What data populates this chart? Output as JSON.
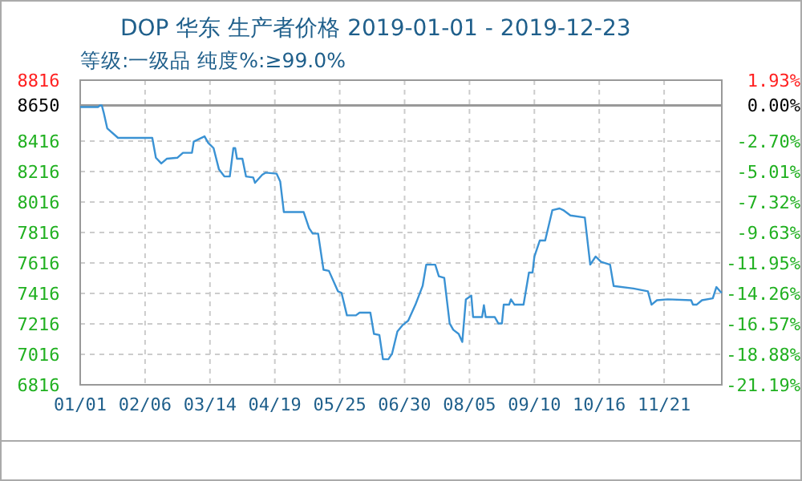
{
  "chart_data": {
    "type": "line",
    "title": "DOP 华东 生产者价格 2019-01-01 - 2019-12-23",
    "subtitle": "等级:一级品 纯度%:≥99.0%",
    "x": [
      "2019-01-01",
      "2019-01-11",
      "2019-01-12",
      "2019-01-13",
      "2019-01-14",
      "2019-01-16",
      "2019-01-22",
      "2019-02-10",
      "2019-02-12",
      "2019-02-15",
      "2019-02-18",
      "2019-02-24",
      "2019-02-27",
      "2019-03-04",
      "2019-03-05",
      "2019-03-11",
      "2019-03-13",
      "2019-03-16",
      "2019-03-19",
      "2019-03-22",
      "2019-03-25",
      "2019-03-27",
      "2019-03-28",
      "2019-03-29",
      "2019-04-01",
      "2019-04-03",
      "2019-04-07",
      "2019-04-08",
      "2019-04-12",
      "2019-04-14",
      "2019-04-20",
      "2019-04-22",
      "2019-04-24",
      "2019-05-05",
      "2019-05-08",
      "2019-05-10",
      "2019-05-13",
      "2019-05-16",
      "2019-05-19",
      "2019-05-24",
      "2019-05-26",
      "2019-05-29",
      "2019-06-03",
      "2019-06-05",
      "2019-06-11",
      "2019-06-13",
      "2019-06-16",
      "2019-06-18",
      "2019-06-21",
      "2019-06-23",
      "2019-06-26",
      "2019-06-29",
      "2019-07-02",
      "2019-07-06",
      "2019-07-10",
      "2019-07-12",
      "2019-07-17",
      "2019-07-19",
      "2019-07-22",
      "2019-07-25",
      "2019-07-27",
      "2019-07-30",
      "2019-08-01",
      "2019-08-03",
      "2019-08-06",
      "2019-08-07",
      "2019-08-12",
      "2019-08-13",
      "2019-08-14",
      "2019-08-19",
      "2019-08-21",
      "2019-08-23",
      "2019-08-24",
      "2019-08-27",
      "2019-08-28",
      "2019-08-30",
      "2019-09-04",
      "2019-09-07",
      "2019-09-09",
      "2019-09-10",
      "2019-09-13",
      "2019-09-16",
      "2019-09-20",
      "2019-09-24",
      "2019-09-26",
      "2019-09-30",
      "2019-10-08",
      "2019-10-11",
      "2019-10-14",
      "2019-10-17",
      "2019-10-22",
      "2019-10-24",
      "2019-11-04",
      "2019-11-12",
      "2019-11-14",
      "2019-11-17",
      "2019-11-23",
      "2019-12-06",
      "2019-12-07",
      "2019-12-09",
      "2019-12-12",
      "2019-12-18",
      "2019-12-20",
      "2019-12-22",
      "2019-12-23"
    ],
    "series": [
      {
        "color": "#3a92d4",
        "values": [
          8640,
          8640,
          8650,
          8650,
          8605,
          8500,
          8437,
          8437,
          8307,
          8269,
          8300,
          8307,
          8339,
          8339,
          8413,
          8447,
          8405,
          8370,
          8230,
          8184,
          8184,
          8370,
          8370,
          8300,
          8300,
          8184,
          8177,
          8142,
          8195,
          8209,
          8202,
          8150,
          7950,
          7950,
          7844,
          7809,
          7809,
          7571,
          7564,
          7430,
          7420,
          7272,
          7272,
          7290,
          7290,
          7150,
          7143,
          6984,
          6984,
          7019,
          7166,
          7209,
          7237,
          7342,
          7465,
          7605,
          7605,
          7529,
          7518,
          7219,
          7177,
          7150,
          7097,
          7377,
          7402,
          7261,
          7261,
          7339,
          7261,
          7261,
          7219,
          7219,
          7342,
          7342,
          7377,
          7342,
          7342,
          7553,
          7553,
          7658,
          7763,
          7763,
          7963,
          7974,
          7963,
          7928,
          7914,
          7605,
          7658,
          7623,
          7605,
          7465,
          7448,
          7430,
          7342,
          7371,
          7377,
          7371,
          7342,
          7342,
          7371,
          7384,
          7458,
          7430,
          7420
        ]
      }
    ],
    "xlim": [
      "2019-01-01",
      "2019-12-23"
    ],
    "xticks": [
      {
        "value": "2019-01-01",
        "label": "01/01"
      },
      {
        "value": "2019-02-06",
        "label": "02/06"
      },
      {
        "value": "2019-03-14",
        "label": "03/14"
      },
      {
        "value": "2019-04-19",
        "label": "04/19"
      },
      {
        "value": "2019-05-25",
        "label": "05/25"
      },
      {
        "value": "2019-06-30",
        "label": "06/30"
      },
      {
        "value": "2019-08-05",
        "label": "08/05"
      },
      {
        "value": "2019-09-10",
        "label": "09/10"
      },
      {
        "value": "2019-10-16",
        "label": "10/16"
      },
      {
        "value": "2019-11-21",
        "label": "11/21"
      }
    ],
    "ylim": [
      6816,
      8816
    ],
    "yticks": [
      6816,
      7016,
      7216,
      7416,
      7616,
      7816,
      8016,
      8216,
      8416,
      8650,
      8816
    ],
    "y2lim": [
      -21.19,
      1.93
    ],
    "y2ticks": [
      {
        "value": -21.19,
        "label": "-21.19%"
      },
      {
        "value": -18.88,
        "label": "-18.88%"
      },
      {
        "value": -16.57,
        "label": "-16.57%"
      },
      {
        "value": -14.26,
        "label": "-14.26%"
      },
      {
        "value": -11.95,
        "label": "-11.95%"
      },
      {
        "value": -9.63,
        "label": "-9.63%"
      },
      {
        "value": -7.32,
        "label": "-7.32%"
      },
      {
        "value": -5.01,
        "label": "-5.01%"
      },
      {
        "value": -2.7,
        "label": "-2.70%"
      },
      {
        "value": 0,
        "label": "0.00%"
      },
      {
        "value": 1.93,
        "label": "1.93%"
      }
    ],
    "ref_lines": [
      {
        "axis": "y",
        "value": 8650,
        "color": "#999999"
      }
    ],
    "grid": true
  }
}
